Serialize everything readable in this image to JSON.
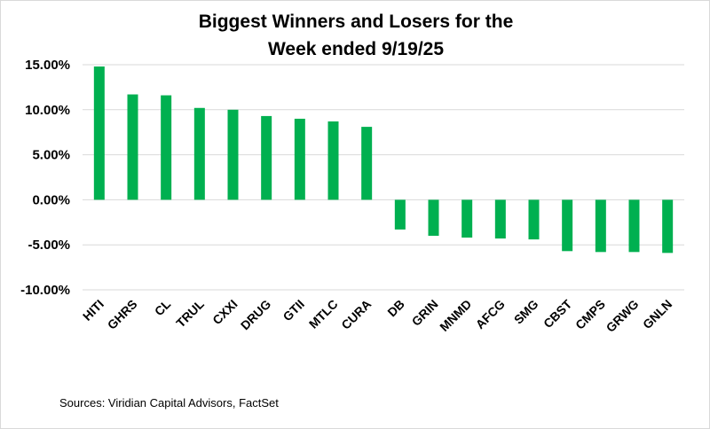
{
  "chart_data": {
    "type": "bar",
    "title_lines": [
      "Biggest Winners and Losers for the",
      "Week ended 9/19/25"
    ],
    "categories": [
      "HITI",
      "GHRS",
      "CL",
      "TRUL",
      "CXXI",
      "DRUG",
      "GTII",
      "MTLC",
      "CURA",
      "DB",
      "GRIN",
      "MNMD",
      "AFCG",
      "SMG",
      "CBST",
      "CMPS",
      "GRWG",
      "GNLN"
    ],
    "values": [
      14.8,
      11.7,
      11.6,
      10.2,
      10.0,
      9.3,
      9.0,
      8.7,
      8.1,
      -3.3,
      -4.0,
      -4.2,
      -4.3,
      -4.4,
      -5.7,
      -5.8,
      -5.8,
      -5.9
    ],
    "ylim": [
      -10,
      15
    ],
    "yticks": [
      15,
      10,
      5,
      0,
      -5,
      -10
    ],
    "ytick_labels": [
      "15.00%",
      "10.00%",
      "5.00%",
      "0.00%",
      "-5.00%",
      "-10.00%"
    ],
    "xlabel": "",
    "ylabel": "",
    "grid": true,
    "bar_color": "#00b050",
    "grid_color": "#d9d9d9"
  },
  "source": "Sources: Viridian Capital Advisors, FactSet"
}
